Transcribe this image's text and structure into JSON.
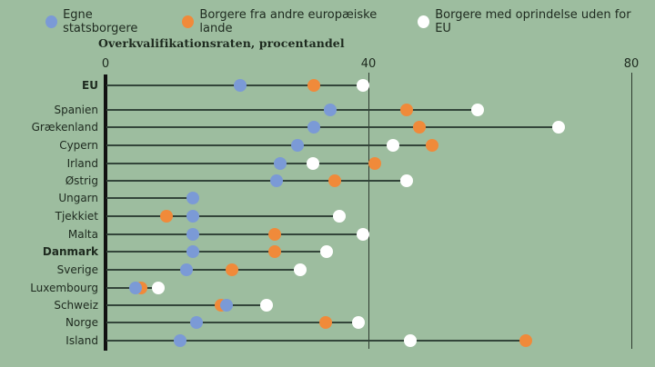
{
  "legend": [
    {
      "label": "Egne statsborgere",
      "color": "#7b9ad6"
    },
    {
      "label": "Borgere fra andre europæiske lande",
      "color": "#f08a3a"
    },
    {
      "label": "Borgere med oprindelse uden for EU",
      "color": "#ffffff"
    }
  ],
  "chart_data": {
    "type": "scatter",
    "title": "Overkvalifikationsraten, procentandel",
    "xlabel": "",
    "ylabel": "",
    "xlim": [
      0,
      80
    ],
    "xticks": [
      0,
      40,
      80
    ],
    "grid": true,
    "legend_position": "top",
    "categories": [
      "EU",
      "Spanien",
      "Grækenland",
      "Cypern",
      "Irland",
      "Østrig",
      "Ungarn",
      "Tjekkiet",
      "Malta",
      "Danmark",
      "Sverige",
      "Luxembourg",
      "Schweiz",
      "Norge",
      "Island"
    ],
    "bold_categories": [
      "EU",
      "Danmark"
    ],
    "series": [
      {
        "name": "Egne statsborgere",
        "color": "#7b9ad6",
        "values": [
          20.5,
          34.2,
          31.7,
          29.2,
          26.6,
          26.0,
          13.3,
          13.3,
          13.3,
          13.3,
          12.3,
          4.6,
          18.4,
          13.8,
          11.3
        ]
      },
      {
        "name": "Borgere fra andre europæiske lande",
        "color": "#f08a3a",
        "values": [
          31.7,
          45.8,
          47.8,
          49.7,
          41.0,
          34.9,
          null,
          9.3,
          25.7,
          25.7,
          19.2,
          5.4,
          17.6,
          33.5,
          63.9
        ]
      },
      {
        "name": "Borgere med oprindelse uden for EU",
        "color": "#ffffff",
        "values": [
          39.2,
          56.6,
          68.9,
          43.7,
          31.6,
          45.8,
          null,
          35.6,
          39.2,
          33.6,
          29.6,
          8.0,
          24.5,
          38.5,
          46.4
        ]
      }
    ]
  }
}
